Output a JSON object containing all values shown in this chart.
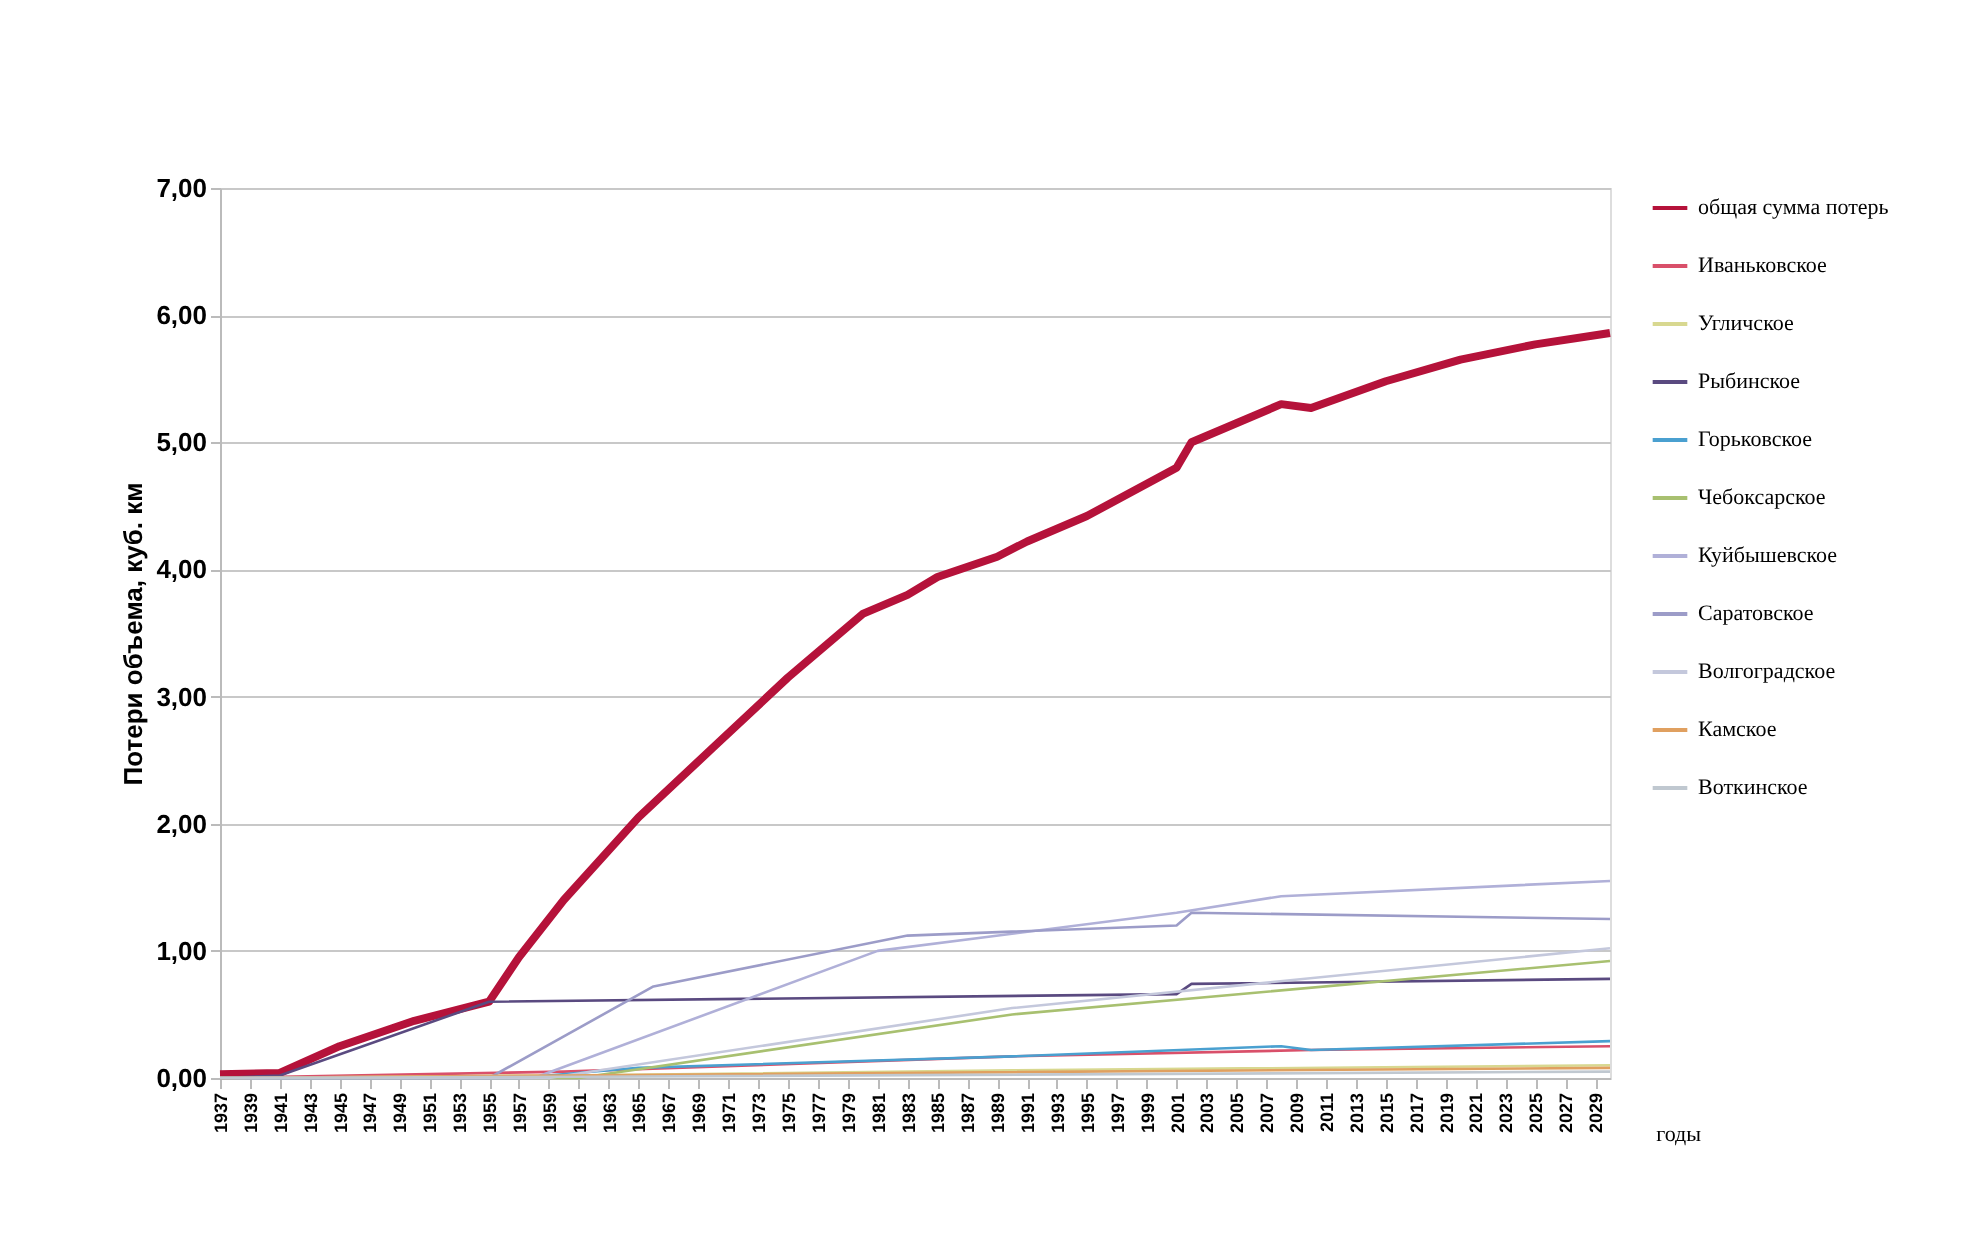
{
  "chart_data": {
    "type": "line",
    "ylabel": "Потери объема, куб. км",
    "xlabel": "годы",
    "xlim": [
      1937,
      2030
    ],
    "xticks": [
      1937,
      1939,
      1941,
      1943,
      1945,
      1947,
      1949,
      1951,
      1953,
      1955,
      1957,
      1959,
      1961,
      1963,
      1965,
      1967,
      1969,
      1971,
      1973,
      1975,
      1977,
      1979,
      1981,
      1983,
      1985,
      1987,
      1989,
      1991,
      1993,
      1995,
      1997,
      1999,
      2001,
      2003,
      2005,
      2007,
      2009,
      2011,
      2013,
      2015,
      2017,
      2019,
      2021,
      2023,
      2025,
      2027,
      2029
    ],
    "ylim": [
      0,
      7
    ],
    "yticks": [
      {
        "value": 0,
        "label": "0,00"
      },
      {
        "value": 1,
        "label": "1,00"
      },
      {
        "value": 2,
        "label": "2,00"
      },
      {
        "value": 3,
        "label": "3,00"
      },
      {
        "value": 4,
        "label": "4,00"
      },
      {
        "value": 5,
        "label": "5,00"
      },
      {
        "value": 6,
        "label": "6,00"
      },
      {
        "value": 7,
        "label": "7,00"
      }
    ],
    "grid": "y",
    "legend": "right",
    "series": [
      {
        "name": "общая сумма потерь",
        "color": "#b5123a",
        "x": [
          1937,
          1941,
          1945,
          1950,
          1955,
          1957,
          1960,
          1965,
          1970,
          1975,
          1980,
          1983,
          1985,
          1989,
          1991,
          1995,
          2001,
          2002,
          2005,
          2008,
          2010,
          2015,
          2020,
          2025,
          2030
        ],
        "values": [
          0.03,
          0.04,
          0.25,
          0.45,
          0.6,
          0.95,
          1.4,
          2.05,
          2.6,
          3.15,
          3.65,
          3.8,
          3.94,
          4.1,
          4.22,
          4.42,
          4.8,
          5.0,
          5.15,
          5.3,
          5.27,
          5.48,
          5.65,
          5.77,
          5.86
        ]
      },
      {
        "name": "Иваньковское",
        "color": "#d9506a",
        "x": [
          1937,
          1960,
          1990,
          2010,
          2030
        ],
        "values": [
          0.0,
          0.05,
          0.17,
          0.22,
          0.25
        ]
      },
      {
        "name": "Угличское",
        "color": "#d8d890",
        "x": [
          1937,
          1960,
          1990,
          2030
        ],
        "values": [
          0.0,
          0.02,
          0.06,
          0.1
        ]
      },
      {
        "name": "Рыбинское",
        "color": "#5a4a80",
        "x": [
          1937,
          1941,
          1955,
          2001,
          2002,
          2030
        ],
        "values": [
          0.0,
          0.02,
          0.6,
          0.66,
          0.74,
          0.78
        ]
      },
      {
        "name": "Горьковское",
        "color": "#4aa0d0",
        "x": [
          1937,
          1957,
          1965,
          1990,
          2008,
          2010,
          2030
        ],
        "values": [
          0.0,
          0.0,
          0.08,
          0.17,
          0.25,
          0.22,
          0.29
        ]
      },
      {
        "name": "Чебоксарское",
        "color": "#a8c070",
        "x": [
          1937,
          1961,
          1990,
          2030
        ],
        "values": [
          0.0,
          0.0,
          0.5,
          0.92
        ]
      },
      {
        "name": "Куйбышевское",
        "color": "#b0b0d8",
        "x": [
          1937,
          1958,
          1981,
          2001,
          2008,
          2030
        ],
        "values": [
          0.0,
          0.0,
          1.0,
          1.3,
          1.43,
          1.55
        ]
      },
      {
        "name": "Саратовское",
        "color": "#9c9cc8",
        "x": [
          1937,
          1955,
          1966,
          1983,
          2001,
          2002,
          2030
        ],
        "values": [
          0.0,
          0.0,
          0.72,
          1.12,
          1.2,
          1.3,
          1.25
        ]
      },
      {
        "name": "Волгоградское",
        "color": "#c4c8dc",
        "x": [
          1937,
          1959,
          1990,
          2030
        ],
        "values": [
          0.0,
          0.0,
          0.55,
          1.02
        ]
      },
      {
        "name": "Камское",
        "color": "#e0a060",
        "x": [
          1937,
          1960,
          2030
        ],
        "values": [
          0.0,
          0.02,
          0.08
        ]
      },
      {
        "name": "Воткинское",
        "color": "#c0c8d0",
        "x": [
          1937,
          1962,
          2030
        ],
        "values": [
          0.0,
          0.01,
          0.05
        ]
      }
    ]
  }
}
